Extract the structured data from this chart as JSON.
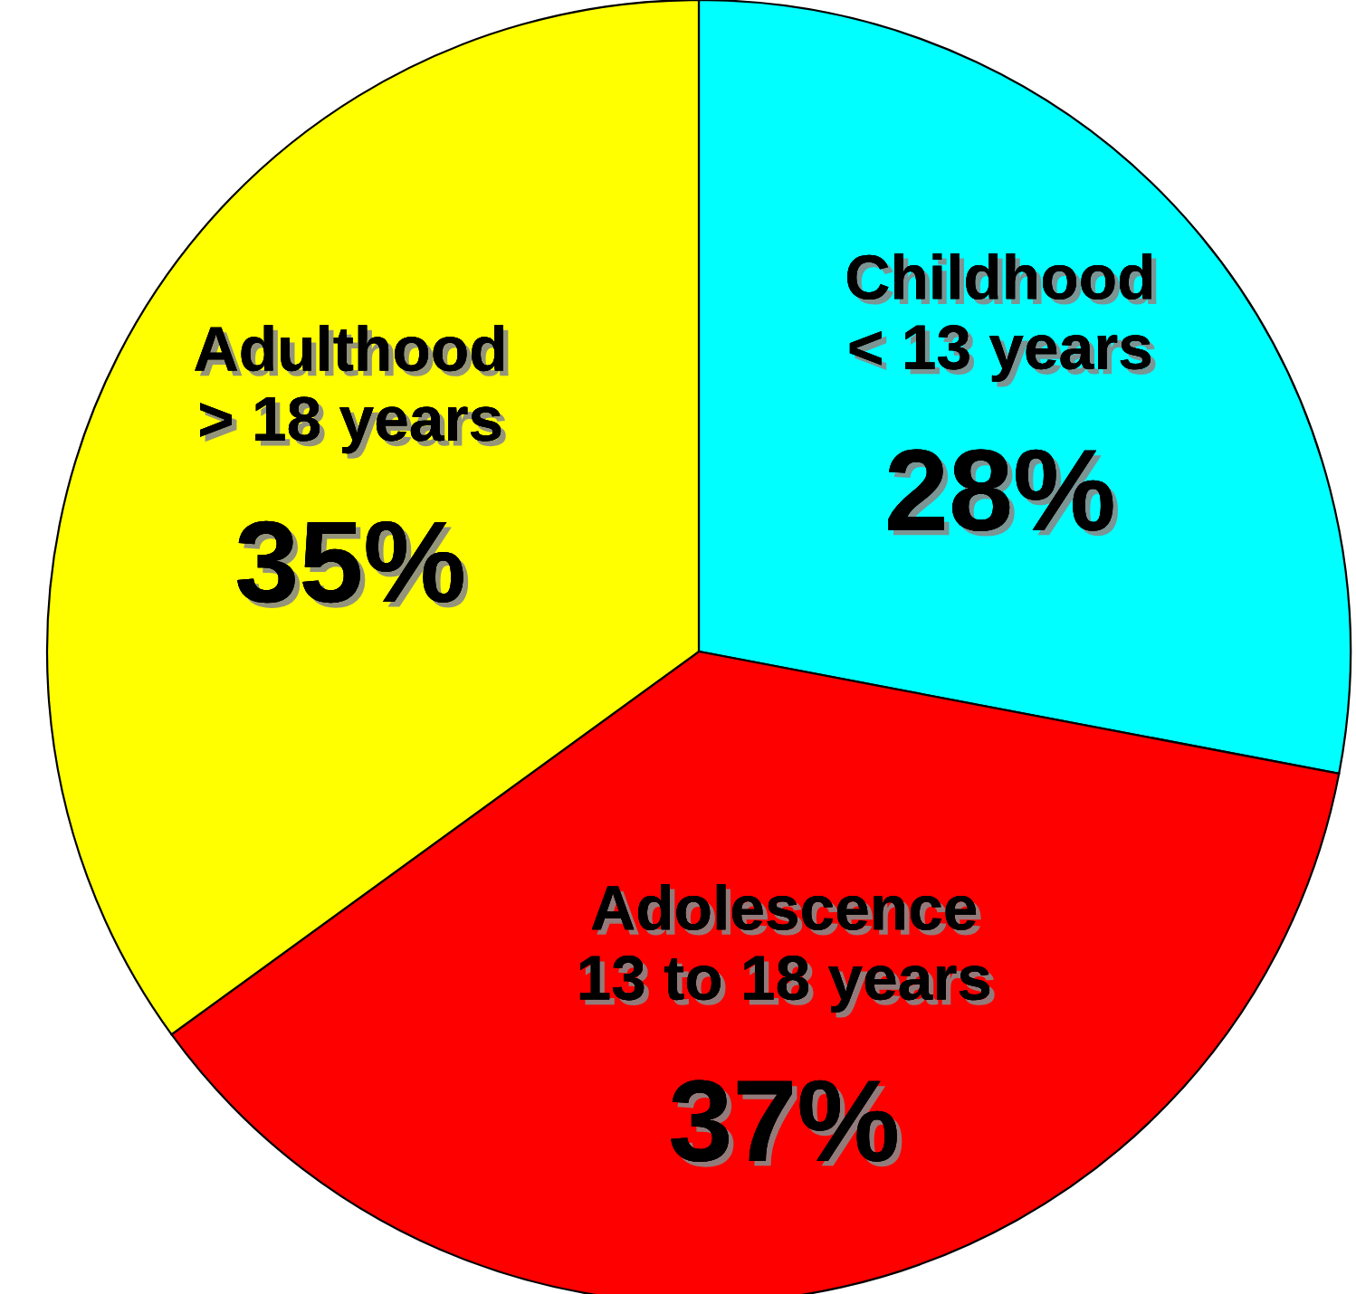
{
  "chart_data": {
    "type": "pie",
    "categories": [
      "Childhood\n< 13 years",
      "Adolescence\n13 to 18 years",
      "Adulthood\n> 18 years"
    ],
    "values": [
      28,
      37,
      35
    ],
    "colors": [
      "#00ffff",
      "#ff0000",
      "#ffff00"
    ],
    "value_labels": [
      "28%",
      "37%",
      "35%"
    ]
  }
}
